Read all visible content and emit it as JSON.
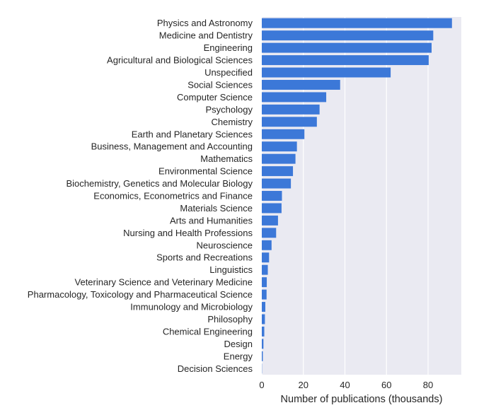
{
  "chart_data": {
    "type": "bar",
    "orientation": "horizontal",
    "categories": [
      "Physics and Astronomy",
      "Medicine and Dentistry",
      "Engineering",
      "Agricultural and Biological Sciences",
      "Unspecified",
      "Social Sciences",
      "Computer Science",
      "Psychology",
      "Chemistry",
      "Earth and Planetary Sciences",
      "Business, Management and Accounting",
      "Mathematics",
      "Environmental Science",
      "Biochemistry, Genetics and Molecular Biology",
      "Economics, Econometrics and Finance",
      "Materials Science",
      "Arts and Humanities",
      "Nursing and Health Professions",
      "Neuroscience",
      "Sports and Recreations",
      "Linguistics",
      "Veterinary Science and Veterinary Medicine",
      "Pharmacology, Toxicology and Pharmaceutical Science",
      "Immunology and Microbiology",
      "Philosophy",
      "Chemical Engineering",
      "Design",
      "Energy",
      "Decision Sciences"
    ],
    "values": [
      91.5,
      82.5,
      81.7,
      80.3,
      62.0,
      37.7,
      31.0,
      27.8,
      26.5,
      20.5,
      16.9,
      16.2,
      15.0,
      14.0,
      9.7,
      9.5,
      7.8,
      6.9,
      4.7,
      3.5,
      2.9,
      2.4,
      2.3,
      1.7,
      1.5,
      1.2,
      0.8,
      0.5,
      0.1
    ],
    "title": "",
    "xlabel": "Number of publications (thousands)",
    "ylabel": "",
    "xlim": [
      0,
      96
    ],
    "xticks": [
      0,
      20,
      40,
      60,
      80
    ],
    "grid": true,
    "colors": {
      "bar": "#3c78d8",
      "plot_background": "#eaeaf2",
      "grid": "#ffffff"
    }
  }
}
